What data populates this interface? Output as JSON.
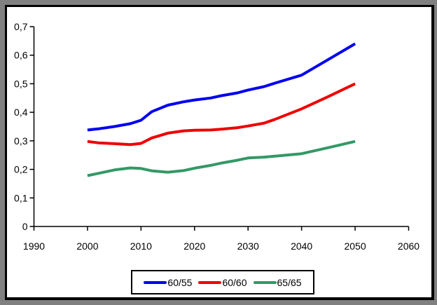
{
  "palette": {
    "surround": "#808080",
    "canvas": "#ffffff",
    "frame": "#000000",
    "axis": "#000000",
    "text": "#000000"
  },
  "chart_data": {
    "type": "line",
    "title": "",
    "xlabel": "",
    "ylabel": "",
    "grid": false,
    "legend_position": "bottom-center",
    "xlim": [
      1990,
      2060
    ],
    "ylim": [
      0,
      0.7
    ],
    "x_tick_values": [
      1990,
      2000,
      2010,
      2020,
      2030,
      2040,
      2050,
      2060
    ],
    "x_tick_labels": [
      "1990",
      "2000",
      "2010",
      "2020",
      "2030",
      "2040",
      "2050",
      "2060"
    ],
    "y_tick_values": [
      0,
      0.1,
      0.2,
      0.3,
      0.4,
      0.5,
      0.6,
      0.7
    ],
    "y_tick_labels": [
      "0",
      "0,1",
      "0,2",
      "0,3",
      "0,4",
      "0,5",
      "0,6",
      "0,7"
    ],
    "x": [
      2000,
      2002,
      2005,
      2008,
      2010,
      2012,
      2015,
      2018,
      2020,
      2023,
      2025,
      2028,
      2030,
      2033,
      2035,
      2040,
      2045,
      2050
    ],
    "series": [
      {
        "name": "60/55",
        "color": "#0000ee",
        "values": [
          0.338,
          0.342,
          0.35,
          0.36,
          0.372,
          0.402,
          0.425,
          0.437,
          0.443,
          0.45,
          0.458,
          0.468,
          0.478,
          0.49,
          0.502,
          0.53,
          0.585,
          0.64
        ]
      },
      {
        "name": "60/60",
        "color": "#ee0000",
        "values": [
          0.298,
          0.293,
          0.29,
          0.287,
          0.291,
          0.31,
          0.327,
          0.335,
          0.337,
          0.338,
          0.341,
          0.346,
          0.352,
          0.362,
          0.375,
          0.412,
          0.455,
          0.5
        ]
      },
      {
        "name": "65/65",
        "color": "#339966",
        "values": [
          0.178,
          0.186,
          0.198,
          0.205,
          0.203,
          0.195,
          0.19,
          0.196,
          0.204,
          0.214,
          0.222,
          0.232,
          0.24,
          0.243,
          0.246,
          0.255,
          0.276,
          0.298
        ]
      }
    ]
  },
  "legend": {
    "items": [
      {
        "label": "60/55"
      },
      {
        "label": "60/60"
      },
      {
        "label": "65/65"
      }
    ]
  }
}
